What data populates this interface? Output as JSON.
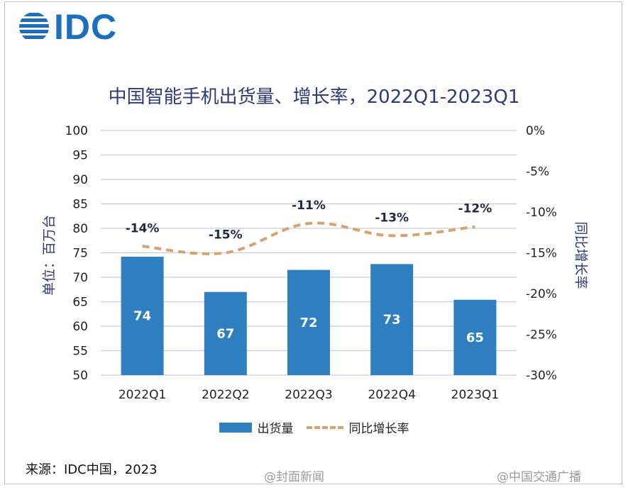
{
  "logo": {
    "text": "IDC"
  },
  "source": "来源：IDC中国，2023",
  "watermarks": [
    "@封面新闻",
    "@中国交通广播"
  ],
  "legend": {
    "bar_label": "出货量",
    "line_label": "同比增长率"
  },
  "colors": {
    "bar": "#2f7fc0",
    "line": "#d9a26c",
    "title": "#2c3a78",
    "grid": "#c8ccdc"
  },
  "chart_data": {
    "type": "bar",
    "title": "中国智能手机出货量、增长率，2022Q1-2023Q1",
    "ylabel": "单位：百万台",
    "ylabel_right": "同比增长率",
    "categories": [
      "2022Q1",
      "2022Q2",
      "2022Q3",
      "2022Q4",
      "2023Q1"
    ],
    "ylim": [
      50,
      100
    ],
    "yticks": [
      50,
      55,
      60,
      65,
      70,
      75,
      80,
      85,
      90,
      95,
      100
    ],
    "y2lim": [
      -30,
      0
    ],
    "y2ticks": [
      "0%",
      "-5%",
      "-10%",
      "-15%",
      "-20%",
      "-25%",
      "-30%"
    ],
    "grid": true,
    "legend": "bottom",
    "series": [
      {
        "name": "出货量",
        "type": "bar",
        "axis": "left",
        "values": [
          74.2,
          67,
          71.5,
          72.7,
          65.4
        ],
        "labels": [
          "74",
          "67",
          "72",
          "73",
          "65"
        ]
      },
      {
        "name": "同比增长率",
        "type": "line",
        "style": "dashed",
        "axis": "right",
        "values": [
          -14.2,
          -15,
          -11.4,
          -12.9,
          -11.8
        ],
        "labels": [
          "-14%",
          "-15%",
          "-11%",
          "-13%",
          "-12%"
        ]
      }
    ]
  }
}
